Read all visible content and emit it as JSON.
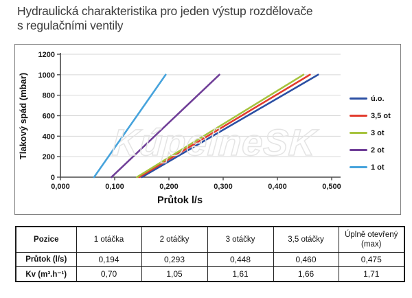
{
  "title": {
    "line1": "Hydraulická charakteristika pro jeden výstup rozdělovače",
    "line2": "s regulačními ventily"
  },
  "watermark": "KúpelneSK",
  "colors": {
    "grid": "#d6d6d6",
    "axis": "#4a4a4a",
    "frame": "#7f7f7f",
    "title_text": "#3c3c3c",
    "table_border": "#1c1c1c"
  },
  "chart_data": {
    "type": "line",
    "title": "",
    "xlabel": "Průtok l/s",
    "ylabel": "Tlakový spád (mbar)",
    "xlim": [
      0,
      0.5
    ],
    "ylim": [
      0,
      1200
    ],
    "x_ticks": [
      "0,000",
      "0,100",
      "0,200",
      "0,300",
      "0,400",
      "0,500"
    ],
    "y_ticks": [
      "0",
      "200",
      "400",
      "600",
      "800",
      "1000",
      "1200"
    ],
    "grid": true,
    "legend_position": "right",
    "series": [
      {
        "name": "ú.o.",
        "color": "#2b4fa3",
        "points": [
          [
            0.15,
            0
          ],
          [
            0.475,
            1000
          ]
        ]
      },
      {
        "name": "3,5 ot",
        "color": "#e23b2d",
        "points": [
          [
            0.145,
            0
          ],
          [
            0.46,
            1000
          ]
        ]
      },
      {
        "name": "3 ot",
        "color": "#a6c33d",
        "points": [
          [
            0.141,
            0
          ],
          [
            0.448,
            1000
          ]
        ]
      },
      {
        "name": "2 ot",
        "color": "#703f98",
        "points": [
          [
            0.094,
            0
          ],
          [
            0.293,
            1000
          ]
        ]
      },
      {
        "name": "1 ot",
        "color": "#46a3dc",
        "points": [
          [
            0.062,
            0
          ],
          [
            0.194,
            1000
          ]
        ]
      }
    ]
  },
  "table": {
    "headers": [
      "Pozice",
      "1 otáčka",
      "2 otáčky",
      "3 otáčky",
      "3,5 otáčky",
      "Úplně otevřený (max)"
    ],
    "rows": [
      {
        "label": "Průtok (l/s)",
        "values": [
          "0,194",
          "0,293",
          "0,448",
          "0,460",
          "0,475"
        ]
      },
      {
        "label": "Kv (m³.h⁻¹)",
        "values": [
          "0,70",
          "1,05",
          "1,61",
          "1,66",
          "1,71"
        ]
      }
    ]
  }
}
